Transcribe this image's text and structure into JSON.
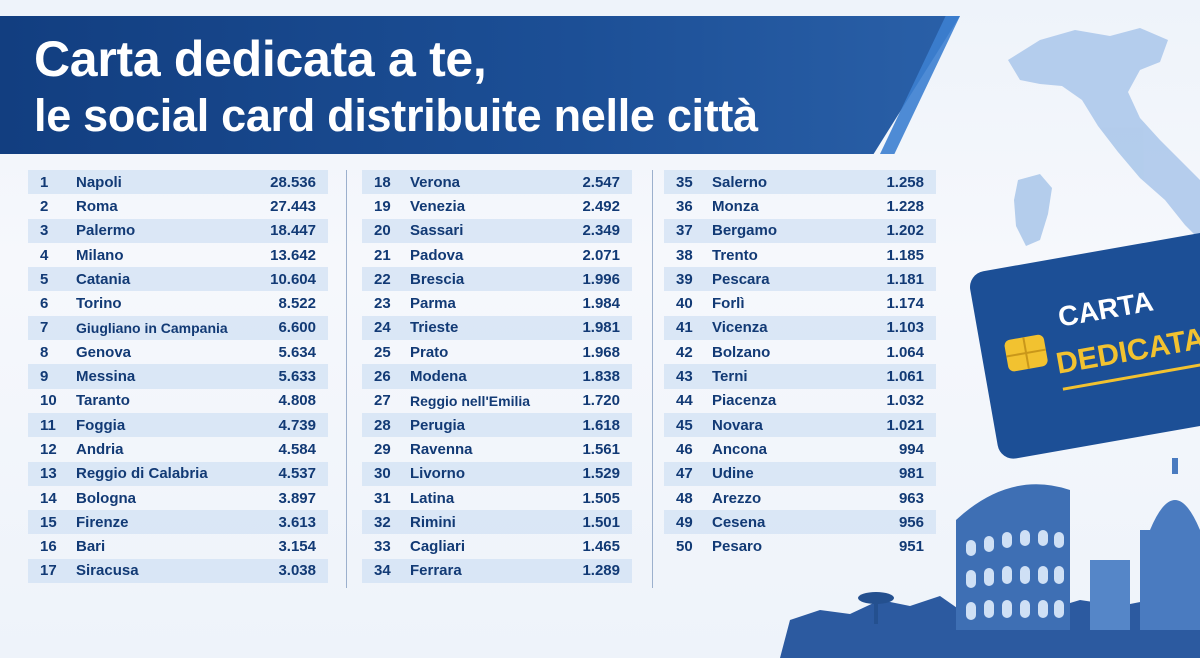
{
  "header": {
    "title_line1": "Carta dedicata a te,",
    "title_line2": "le social card distribuite nelle città"
  },
  "card": {
    "line1": "CARTA",
    "line2": "DEDICATA A"
  },
  "colors": {
    "banner": "#1c4f96",
    "text": "#123a75",
    "row_band": "#d2e1f4",
    "card": "#1c4f96",
    "card_accent": "#f2c230"
  },
  "icons": [
    "italy-map-icon",
    "chip-icon",
    "colosseum-icon",
    "dome-icon",
    "pine-tree-icon"
  ],
  "table": {
    "columns": [
      [
        {
          "rank": "1",
          "city": "Napoli",
          "value": "28.536"
        },
        {
          "rank": "2",
          "city": "Roma",
          "value": "27.443"
        },
        {
          "rank": "3",
          "city": "Palermo",
          "value": "18.447"
        },
        {
          "rank": "4",
          "city": "Milano",
          "value": "13.642"
        },
        {
          "rank": "5",
          "city": "Catania",
          "value": "10.604"
        },
        {
          "rank": "6",
          "city": "Torino",
          "value": "8.522"
        },
        {
          "rank": "7",
          "city": "Giugliano in Campania",
          "value": "6.600"
        },
        {
          "rank": "8",
          "city": "Genova",
          "value": "5.634"
        },
        {
          "rank": "9",
          "city": "Messina",
          "value": "5.633"
        },
        {
          "rank": "10",
          "city": "Taranto",
          "value": "4.808"
        },
        {
          "rank": "11",
          "city": "Foggia",
          "value": "4.739"
        },
        {
          "rank": "12",
          "city": "Andria",
          "value": "4.584"
        },
        {
          "rank": "13",
          "city": "Reggio di Calabria",
          "value": "4.537"
        },
        {
          "rank": "14",
          "city": "Bologna",
          "value": "3.897"
        },
        {
          "rank": "15",
          "city": "Firenze",
          "value": "3.613"
        },
        {
          "rank": "16",
          "city": "Bari",
          "value": "3.154"
        },
        {
          "rank": "17",
          "city": "Siracusa",
          "value": "3.038"
        }
      ],
      [
        {
          "rank": "18",
          "city": "Verona",
          "value": "2.547"
        },
        {
          "rank": "19",
          "city": "Venezia",
          "value": "2.492"
        },
        {
          "rank": "20",
          "city": "Sassari",
          "value": "2.349"
        },
        {
          "rank": "21",
          "city": "Padova",
          "value": "2.071"
        },
        {
          "rank": "22",
          "city": "Brescia",
          "value": "1.996"
        },
        {
          "rank": "23",
          "city": "Parma",
          "value": "1.984"
        },
        {
          "rank": "24",
          "city": "Trieste",
          "value": "1.981"
        },
        {
          "rank": "25",
          "city": "Prato",
          "value": "1.968"
        },
        {
          "rank": "26",
          "city": "Modena",
          "value": "1.838"
        },
        {
          "rank": "27",
          "city": "Reggio nell'Emilia",
          "value": "1.720"
        },
        {
          "rank": "28",
          "city": "Perugia",
          "value": "1.618"
        },
        {
          "rank": "29",
          "city": "Ravenna",
          "value": "1.561"
        },
        {
          "rank": "30",
          "city": "Livorno",
          "value": "1.529"
        },
        {
          "rank": "31",
          "city": "Latina",
          "value": "1.505"
        },
        {
          "rank": "32",
          "city": "Rimini",
          "value": "1.501"
        },
        {
          "rank": "33",
          "city": "Cagliari",
          "value": "1.465"
        },
        {
          "rank": "34",
          "city": "Ferrara",
          "value": "1.289"
        }
      ],
      [
        {
          "rank": "35",
          "city": "Salerno",
          "value": "1.258"
        },
        {
          "rank": "36",
          "city": "Monza",
          "value": "1.228"
        },
        {
          "rank": "37",
          "city": "Bergamo",
          "value": "1.202"
        },
        {
          "rank": "38",
          "city": "Trento",
          "value": "1.185"
        },
        {
          "rank": "39",
          "city": "Pescara",
          "value": "1.181"
        },
        {
          "rank": "40",
          "city": "Forlì",
          "value": "1.174"
        },
        {
          "rank": "41",
          "city": "Vicenza",
          "value": "1.103"
        },
        {
          "rank": "42",
          "city": "Bolzano",
          "value": "1.064"
        },
        {
          "rank": "43",
          "city": "Terni",
          "value": "1.061"
        },
        {
          "rank": "44",
          "city": "Piacenza",
          "value": "1.032"
        },
        {
          "rank": "45",
          "city": "Novara",
          "value": "1.021"
        },
        {
          "rank": "46",
          "city": "Ancona",
          "value": "994"
        },
        {
          "rank": "47",
          "city": "Udine",
          "value": "981"
        },
        {
          "rank": "48",
          "city": "Arezzo",
          "value": "963"
        },
        {
          "rank": "49",
          "city": "Cesena",
          "value": "956"
        },
        {
          "rank": "50",
          "city": "Pesaro",
          "value": "951"
        }
      ]
    ]
  }
}
